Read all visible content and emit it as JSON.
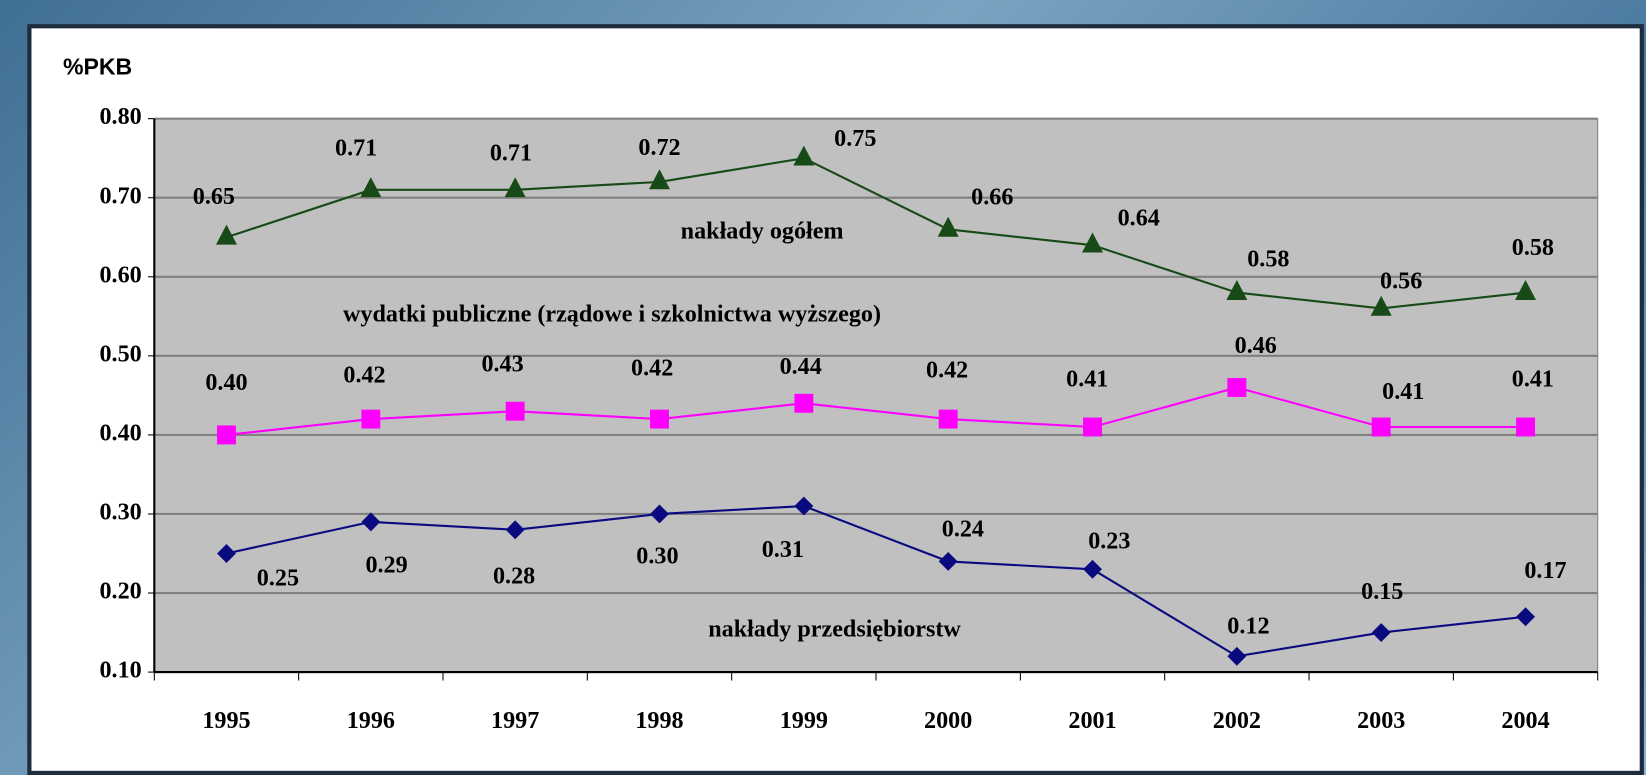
{
  "chart_data": {
    "type": "line",
    "y_label": "%PKB",
    "categories": [
      "1995",
      "1996",
      "1997",
      "1998",
      "1999",
      "2000",
      "2001",
      "2002",
      "2003",
      "2004"
    ],
    "series": [
      {
        "name": "nakłady ogółem",
        "color": "#174a17",
        "marker": "triangle",
        "values": [
          0.65,
          0.71,
          0.71,
          0.72,
          0.75,
          0.66,
          0.64,
          0.58,
          0.56,
          0.58
        ],
        "value_labels": [
          "0.65",
          "0.71",
          "0.71",
          "0.72",
          "0.75",
          "0.66",
          "0.64",
          "0.58",
          "0.56",
          "0.58"
        ]
      },
      {
        "name": "wydatki publiczne (rządowe i szkolnictwa wyższego)",
        "color": "#ff00ff",
        "marker": "square",
        "values": [
          0.4,
          0.42,
          0.43,
          0.42,
          0.44,
          0.42,
          0.41,
          0.46,
          0.41,
          0.41
        ],
        "value_labels": [
          "0.40",
          "0.42",
          "0.43",
          "0.42",
          "0.44",
          "0.42",
          "0.41",
          "0.46",
          "0.41",
          "0.41"
        ]
      },
      {
        "name": "nakłady przedsiębiorstw",
        "color": "#0a0a80",
        "marker": "diamond",
        "values": [
          0.25,
          0.29,
          0.28,
          0.3,
          0.31,
          0.24,
          0.23,
          0.12,
          0.15,
          0.17
        ],
        "value_labels": [
          "0.25",
          "0.29",
          "0.28",
          "0.30",
          "0.31",
          "0.24",
          "0.23",
          "0.12",
          "0.15",
          "0.17"
        ]
      }
    ],
    "ylim": [
      0.1,
      0.8
    ],
    "yticks": [
      {
        "value": 0.1,
        "label": "0.10"
      },
      {
        "value": 0.2,
        "label": "0.20"
      },
      {
        "value": 0.3,
        "label": "0.30"
      },
      {
        "value": 0.4,
        "label": "0.40"
      },
      {
        "value": 0.5,
        "label": "0.50"
      },
      {
        "value": 0.6,
        "label": "0.60"
      },
      {
        "value": 0.7,
        "label": "0.70"
      },
      {
        "value": 0.8,
        "label": "0.80"
      }
    ],
    "grid": true
  }
}
